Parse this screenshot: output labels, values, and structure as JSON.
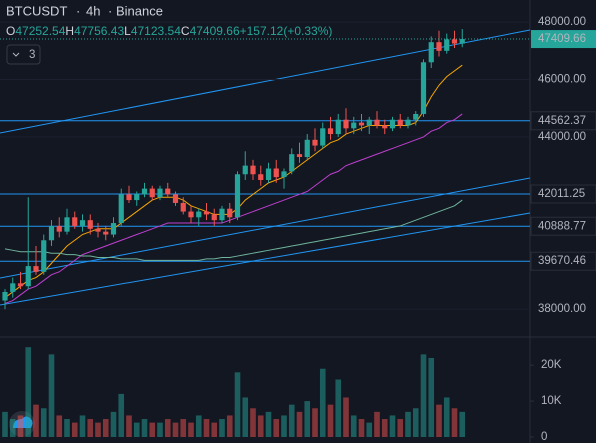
{
  "chart_data": {
    "type": "candlestick",
    "symbol": "BTCUSDT",
    "interval": "4h",
    "exchange": "Binance",
    "ohlc_prefixes": [
      "O",
      "H",
      "L",
      "C"
    ],
    "change": "+157.12",
    "change_pct": "(+0.33%)",
    "indicator_count": "3",
    "ohlc": [
      [
        38300,
        38700,
        38000,
        38600
      ],
      [
        38600,
        39100,
        38400,
        38900
      ],
      [
        38900,
        39300,
        38700,
        38800
      ],
      [
        38800,
        41900,
        38700,
        39500
      ],
      [
        39500,
        40200,
        39200,
        39300
      ],
      [
        39300,
        40600,
        39200,
        40400
      ],
      [
        40400,
        41100,
        40200,
        40900
      ],
      [
        40900,
        41200,
        40500,
        40700
      ],
      [
        40700,
        41500,
        40600,
        41200
      ],
      [
        41200,
        41400,
        40800,
        40900
      ],
      [
        40900,
        41300,
        40700,
        41100
      ],
      [
        41100,
        41300,
        40600,
        40800
      ],
      [
        40800,
        41000,
        40500,
        40700
      ],
      [
        40700,
        40900,
        40400,
        40600
      ],
      [
        40600,
        41200,
        40500,
        41000
      ],
      [
        41000,
        42200,
        40900,
        42000
      ],
      [
        42000,
        42300,
        41700,
        41800
      ],
      [
        41800,
        42100,
        41600,
        42000
      ],
      [
        42000,
        42400,
        41900,
        42200
      ],
      [
        42200,
        42300,
        41800,
        41900
      ],
      [
        41900,
        42300,
        41800,
        42200
      ],
      [
        42200,
        42400,
        41900,
        42000
      ],
      [
        42000,
        42100,
        41600,
        41700
      ],
      [
        41700,
        41900,
        41300,
        41400
      ],
      [
        41400,
        41600,
        41000,
        41200
      ],
      [
        41200,
        41500,
        40900,
        41400
      ],
      [
        41400,
        41700,
        41100,
        41300
      ],
      [
        41300,
        41500,
        40900,
        41100
      ],
      [
        41100,
        41600,
        41000,
        41500
      ],
      [
        41500,
        41700,
        41000,
        41200
      ],
      [
        41200,
        42800,
        41100,
        42700
      ],
      [
        42700,
        43500,
        42500,
        43000
      ],
      [
        43000,
        43200,
        42500,
        42700
      ],
      [
        42700,
        43000,
        42300,
        42500
      ],
      [
        42500,
        43100,
        42400,
        42900
      ],
      [
        42900,
        43200,
        42400,
        42600
      ],
      [
        42600,
        42900,
        42200,
        42800
      ],
      [
        42800,
        43600,
        42700,
        43400
      ],
      [
        43400,
        43800,
        43100,
        43300
      ],
      [
        43300,
        44100,
        43200,
        43900
      ],
      [
        43900,
        44300,
        43500,
        43700
      ],
      [
        43700,
        44500,
        43600,
        44300
      ],
      [
        44300,
        44700,
        43900,
        44100
      ],
      [
        44100,
        44800,
        44000,
        44600
      ],
      [
        44600,
        45000,
        44100,
        44300
      ],
      [
        44300,
        44700,
        44100,
        44500
      ],
      [
        44500,
        44800,
        44200,
        44400
      ],
      [
        44400,
        44700,
        44100,
        44600
      ],
      [
        44600,
        44900,
        44300,
        44400
      ],
      [
        44400,
        44600,
        44100,
        44300
      ],
      [
        44300,
        44700,
        44200,
        44600
      ],
      [
        44600,
        44800,
        44300,
        44400
      ],
      [
        44400,
        44700,
        44300,
        44600
      ],
      [
        44600,
        44900,
        44400,
        44800
      ],
      [
        44800,
        46700,
        44700,
        46600
      ],
      [
        46600,
        47500,
        46400,
        47300
      ],
      [
        47300,
        47700,
        46800,
        47000
      ],
      [
        47000,
        47600,
        46900,
        47400
      ],
      [
        47400,
        47700,
        47100,
        47252.54
      ],
      [
        47252.54,
        47756.43,
        47123.54,
        47409.66
      ]
    ],
    "volume": [
      7000,
      5000,
      6000,
      25000,
      9000,
      8000,
      23000,
      6000,
      5000,
      4000,
      6000,
      5000,
      4000,
      5000,
      7000,
      12000,
      6000,
      4000,
      5000,
      4000,
      4000,
      5000,
      4000,
      5000,
      4000,
      6000,
      5000,
      4000,
      5000,
      6000,
      18000,
      11000,
      8000,
      6000,
      7000,
      5000,
      6000,
      9000,
      7000,
      10000,
      8000,
      19000,
      9000,
      16000,
      11000,
      6000,
      5000,
      4000,
      7000,
      5000,
      6000,
      5000,
      7000,
      8000,
      23000,
      22000,
      9000,
      11000,
      8000,
      7000
    ],
    "overlays": [
      {
        "color": "#f7a600",
        "values": [
          38400,
          38600,
          38800,
          39000,
          39100,
          39300,
          39600,
          39900,
          40200,
          40400,
          40600,
          40700,
          40800,
          40800,
          40800,
          41000,
          41200,
          41400,
          41600,
          41800,
          41900,
          41900,
          41900,
          41800,
          41600,
          41500,
          41400,
          41300,
          41300,
          41300,
          41500,
          41800,
          42000,
          42200,
          42400,
          42500,
          42600,
          42800,
          43000,
          43200,
          43400,
          43600,
          43800,
          43900,
          44100,
          44200,
          44300,
          44400,
          44400,
          44400,
          44400,
          44400,
          44400,
          44500,
          44900,
          45400,
          45800,
          46100,
          46300,
          46500
        ]
      },
      {
        "color": "#c03fd1",
        "values": [
          38200,
          38300,
          38500,
          38700,
          38800,
          39000,
          39200,
          39300,
          39500,
          39700,
          39900,
          40000,
          40100,
          40200,
          40300,
          40400,
          40500,
          40600,
          40700,
          40800,
          40900,
          41000,
          41000,
          41000,
          41000,
          41000,
          41000,
          41000,
          41000,
          41100,
          41200,
          41300,
          41400,
          41500,
          41600,
          41700,
          41800,
          41900,
          42000,
          42100,
          42300,
          42500,
          42700,
          42800,
          43000,
          43100,
          43200,
          43300,
          43400,
          43500,
          43600,
          43700,
          43800,
          43900,
          44000,
          44200,
          44300,
          44500,
          44600,
          44800
        ]
      },
      {
        "color": "#6fb59c",
        "values": [
          40100,
          40050,
          40000,
          40000,
          40000,
          40000,
          39950,
          39950,
          39900,
          39900,
          39850,
          39850,
          39800,
          39800,
          39800,
          39750,
          39750,
          39750,
          39700,
          39700,
          39700,
          39700,
          39700,
          39700,
          39700,
          39700,
          39750,
          39750,
          39800,
          39800,
          39850,
          39900,
          39950,
          40000,
          40050,
          40100,
          40150,
          40200,
          40250,
          40300,
          40350,
          40400,
          40450,
          40500,
          40550,
          40600,
          40650,
          40700,
          40750,
          40800,
          40850,
          40900,
          41000,
          41100,
          41200,
          41300,
          41400,
          41500,
          41600,
          41800
        ]
      }
    ],
    "levels": [
      44562.37,
      42011.25,
      40888.77,
      39670.46
    ],
    "level_color": "#2196f3",
    "up_color": "#26a69a",
    "down_color": "#ef5350",
    "ylim": [
      37100,
      48770
    ],
    "yticks": [
      {
        "value": 48000,
        "label": "48000.00"
      },
      {
        "value": 46000,
        "label": "46000.00"
      },
      {
        "value": 44000,
        "label": "44000.00"
      },
      {
        "value": 38000,
        "label": "38000.00"
      }
    ],
    "volume_ylim": [
      0,
      27000
    ],
    "volume_yticks": [
      {
        "value": 20000,
        "label": "20K"
      },
      {
        "value": 10000,
        "label": "10K"
      },
      {
        "value": 0,
        "label": "0"
      }
    ]
  }
}
